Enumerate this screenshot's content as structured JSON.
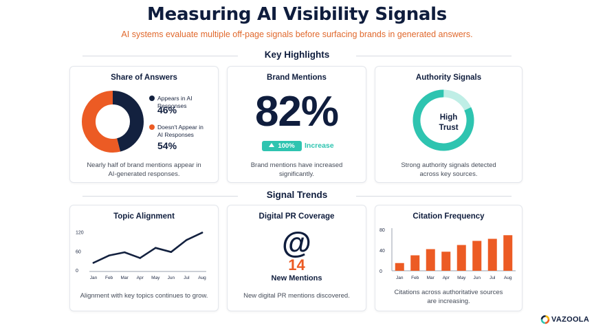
{
  "header": {
    "title": "Measuring AI Visibility Signals",
    "subtitle": "AI systems evaluate multiple off-page signals before surfacing brands in generated answers."
  },
  "sections": {
    "highlights": "Key Highlights",
    "trends": "Signal Trends"
  },
  "share_of_answers": {
    "title": "Share of Answers",
    "legend": [
      {
        "label_line1": "Appears in AI Responses",
        "label_line2": "",
        "value": "46%",
        "color": "#13213f"
      },
      {
        "label_line1": "Doesn't Appear in",
        "label_line2": "AI Responses",
        "value": "54%",
        "color": "#ec5b24"
      }
    ],
    "note_line1": "Nearly half of brand mentions appear in",
    "note_line2": "AI-generated responses."
  },
  "brand_mentions": {
    "title": "Brand Mentions",
    "value": "82%",
    "badge": "100%",
    "badge_label": "Increase",
    "note_line1": "Brand mentions have increased",
    "note_line2": "significantly."
  },
  "authority_signals": {
    "title": "Authority Signals",
    "ring_line1": "High",
    "ring_line2": "Trust",
    "level": 0.82,
    "note_line1": "Strong authority signals detected",
    "note_line2": "across key sources."
  },
  "topic_alignment": {
    "title": "Topic Alignment",
    "note": "Alignment with key topics continues to grow."
  },
  "digital_pr": {
    "title": "Digital PR Coverage",
    "icon": "@",
    "count": "14",
    "label": "New Mentions",
    "note": "New digital PR mentions discovered."
  },
  "citation_frequency": {
    "title": "Citation Frequency",
    "note_line1": "Citations across authoritative sources",
    "note_line2": "are increasing."
  },
  "footer": {
    "brand": "VAZOOLA"
  },
  "colors": {
    "navy": "#13213f",
    "orange": "#ec5b24",
    "teal": "#2ec4b0",
    "teal_light": "#bfeee6"
  },
  "chart_data": [
    {
      "type": "pie",
      "title": "Share of Answers",
      "categories": [
        "Appears in AI Responses",
        "Doesn't Appear in AI Responses"
      ],
      "values": [
        46,
        54
      ]
    },
    {
      "type": "line",
      "title": "Topic Alignment",
      "categories": [
        "Jan",
        "Feb",
        "Mar",
        "Apr",
        "May",
        "Jun",
        "Jul",
        "Aug"
      ],
      "values": [
        23,
        46,
        56,
        38,
        70,
        57,
        95,
        118
      ],
      "yticks": [
        "0",
        "60",
        "120"
      ],
      "ylim": [
        0,
        130
      ],
      "grid": false
    },
    {
      "type": "bar",
      "title": "Citation Frequency",
      "categories": [
        "Jan",
        "Feb",
        "Mar",
        "Apr",
        "May",
        "Jun",
        "Jul",
        "Aug"
      ],
      "values": [
        15,
        30,
        42,
        37,
        50,
        58,
        62,
        69
      ],
      "yticks": [
        "0",
        "40",
        "80"
      ],
      "ylim": [
        0,
        80
      ],
      "grid": false
    }
  ]
}
